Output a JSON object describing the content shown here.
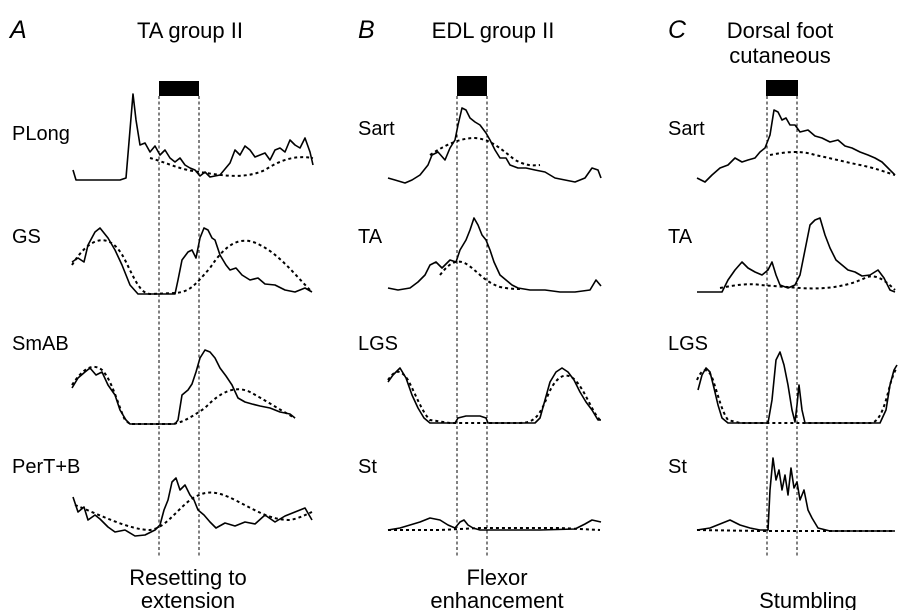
{
  "panels": [
    {
      "letter": "A",
      "title": [
        "TA group II"
      ],
      "caption": [
        "Resetting to",
        "extension"
      ],
      "muscles": [
        "PLong",
        "GS",
        "SmAB",
        "PerT+B"
      ]
    },
    {
      "letter": "B",
      "title": [
        "EDL group II"
      ],
      "caption": [
        "Flexor",
        "enhancement"
      ],
      "muscles": [
        "Sart",
        "TA",
        "LGS",
        "St"
      ]
    },
    {
      "letter": "C",
      "title": [
        "Dorsal foot",
        "cutaneous"
      ],
      "caption": [
        "Stumbling"
      ],
      "muscles": [
        "Sart",
        "TA",
        "LGS",
        "St"
      ]
    }
  ],
  "colors": {
    "trace": "#000000",
    "background": "#ffffff"
  }
}
